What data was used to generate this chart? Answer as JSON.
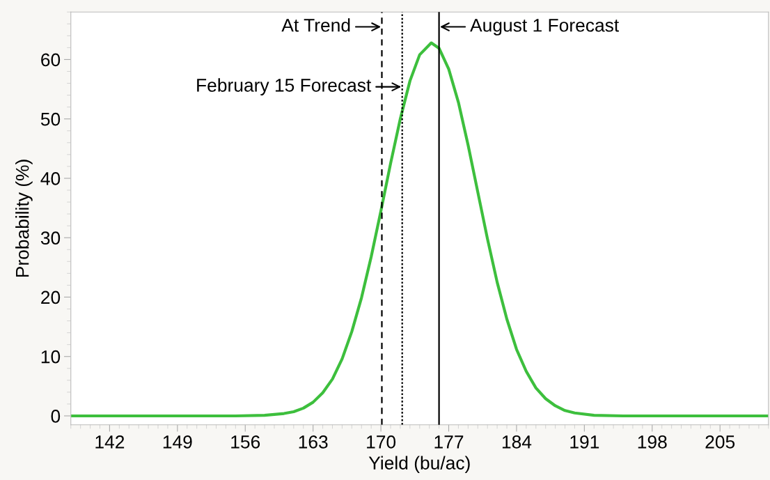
{
  "chart_data": {
    "type": "line",
    "xlabel": "Yield (bu/ac)",
    "ylabel": "Probability (%)",
    "x": [
      138,
      145,
      150,
      155,
      158,
      160,
      161,
      162,
      163,
      164,
      165,
      166,
      167,
      168,
      169,
      170,
      171,
      172,
      173,
      174,
      175.2,
      176,
      177,
      178,
      179,
      180,
      181,
      182,
      183,
      184,
      185,
      186,
      187,
      188,
      189,
      190,
      192,
      195,
      200,
      210
    ],
    "series": [
      {
        "color": "#3dbf3d",
        "values": [
          0,
          0,
          0,
          0,
          0.1,
          0.4,
          0.7,
          1.3,
          2.3,
          3.9,
          6.2,
          9.6,
          14.2,
          19.9,
          26.8,
          34.5,
          42.5,
          50.0,
          56.4,
          60.8,
          62.8,
          61.9,
          58.4,
          52.8,
          45.6,
          37.7,
          29.8,
          22.5,
          16.3,
          11.2,
          7.5,
          4.7,
          2.9,
          1.7,
          0.9,
          0.5,
          0.1,
          0,
          0,
          0
        ]
      }
    ],
    "xlim": [
      138,
      210
    ],
    "ylim": [
      -1.5,
      68
    ],
    "xticks": [
      142,
      149,
      156,
      163,
      170,
      177,
      184,
      191,
      198,
      205
    ],
    "yticks": [
      0,
      10,
      20,
      30,
      40,
      50,
      60
    ],
    "grid": false,
    "legend": false,
    "marker": "none",
    "line_style": "solid",
    "ref_lines": [
      {
        "axis": "x",
        "value": 170.1,
        "color": "#000000",
        "line_style": "dashed"
      },
      {
        "axis": "x",
        "value": 172.2,
        "color": "#000000",
        "line_style": "dotted"
      },
      {
        "axis": "x",
        "value": 176.0,
        "color": "#000000",
        "line_style": "solid"
      }
    ],
    "annotations": [
      {
        "text": "At Trend",
        "x": 170.1,
        "y": 65.5
      },
      {
        "text": "February 15 Forecast",
        "x": 172.2,
        "y": 55.4
      },
      {
        "text": "August 1 Forecast",
        "x": 176.0,
        "y": 65.5
      }
    ]
  }
}
